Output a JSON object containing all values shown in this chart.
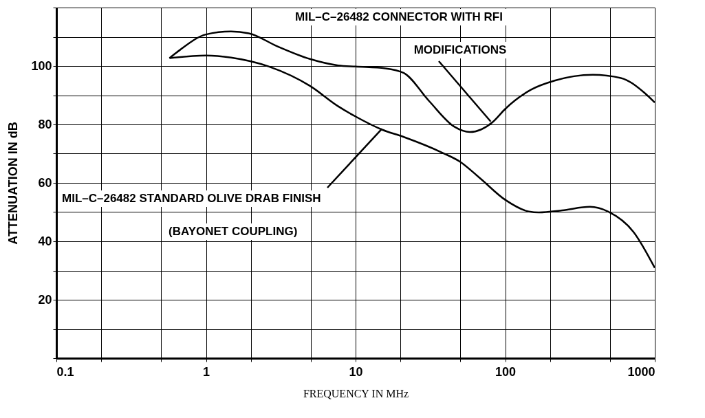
{
  "chart_data": {
    "type": "line",
    "xlabel": "FREQUENCY  IN  MHz",
    "ylabel": "ATTENUATION  IN  dB",
    "log": "x",
    "grid": true,
    "line_style": "solid",
    "marker": "none",
    "xlim": [
      0.1,
      1000
    ],
    "ylim": [
      0,
      120
    ],
    "xticks": [
      0.1,
      {
        "value": 0.2,
        "label": null
      },
      {
        "value": 0.5,
        "label": null
      },
      1,
      {
        "value": 2,
        "label": null
      },
      {
        "value": 5,
        "label": null
      },
      10,
      {
        "value": 20,
        "label": null
      },
      {
        "value": 50,
        "label": null
      },
      100,
      {
        "value": 200,
        "label": null
      },
      {
        "value": 500,
        "label": null
      },
      1000
    ],
    "yticks": [
      {
        "value": 0,
        "label": null
      },
      {
        "value": 10,
        "label": null
      },
      20,
      {
        "value": 30,
        "label": null
      },
      40,
      {
        "value": 50,
        "label": null
      },
      60,
      {
        "value": 70,
        "label": null
      },
      80,
      {
        "value": 90,
        "label": null
      },
      100,
      {
        "value": 110,
        "label": null
      },
      {
        "value": 120,
        "label": null
      }
    ],
    "series": [
      {
        "color": "#000000",
        "x": [
          0.57,
          0.67,
          1,
          1.47,
          1.93,
          2.98,
          4.95,
          7.65,
          10,
          15.8,
          21,
          31,
          45.8,
          58,
          82.8,
          100,
          149,
          214,
          385,
          593,
          845,
          1000
        ],
        "values": [
          102.7,
          105.5,
          110.8,
          111.8,
          111.2,
          106.8,
          102.4,
          100.2,
          99.8,
          99.2,
          97.6,
          88,
          79.2,
          77.4,
          80.9,
          85.3,
          91.9,
          95,
          97,
          95.9,
          91,
          87.5
        ]
      },
      {
        "color": "#000000",
        "x": [
          0.57,
          1,
          1.47,
          2.64,
          4.95,
          7.65,
          10,
          14.9,
          21,
          37.7,
          49.7,
          67.9,
          100,
          144,
          168,
          240,
          369,
          486,
          721,
          1000
        ],
        "values": [
          102.7,
          103.6,
          102.9,
          99.8,
          93.2,
          86.2,
          82.7,
          78.3,
          75.7,
          70.4,
          67.3,
          61.6,
          54.2,
          50.2,
          49.9,
          50.6,
          51.8,
          50.2,
          43.2,
          30.9
        ]
      }
    ],
    "annotations": [
      "MIL–C–26482 CONNECTOR WITH RFI",
      {
        "text": "MODIFICATIONS",
        "x": 80,
        "y": 81
      },
      {
        "text": "MIL–C–26482 STANDARD OLIVE DRAB FINISH",
        "x": 15,
        "y": 78.5
      },
      "(BAYONET COUPLING)"
    ]
  }
}
